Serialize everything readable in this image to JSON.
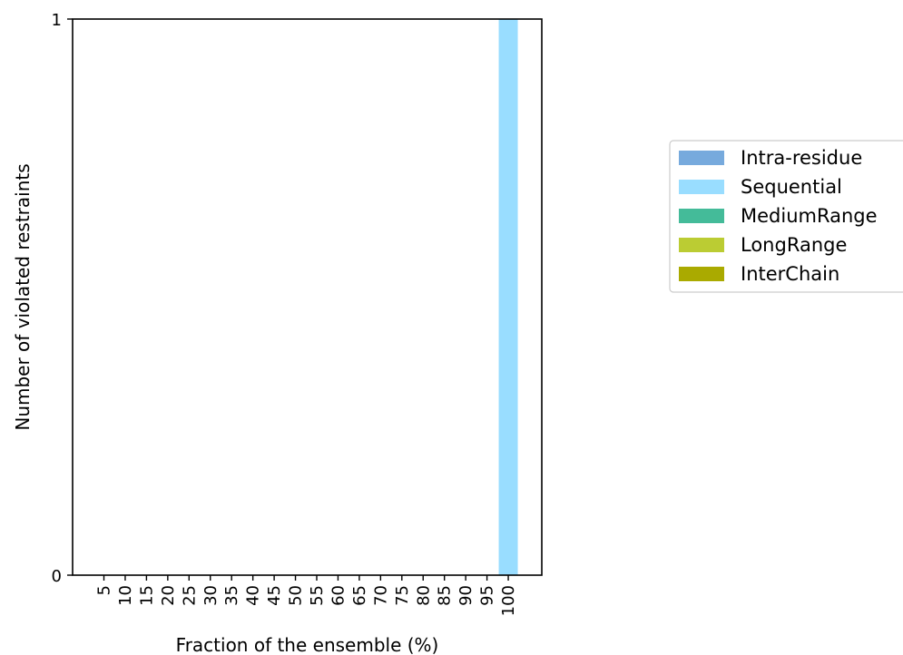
{
  "chart_data": {
    "type": "bar",
    "stacked": true,
    "categories": [
      "5",
      "10",
      "15",
      "20",
      "25",
      "30",
      "35",
      "40",
      "45",
      "50",
      "55",
      "60",
      "65",
      "70",
      "75",
      "80",
      "85",
      "90",
      "95",
      "100"
    ],
    "series": [
      {
        "name": "Intra-residue",
        "color": "#77aadd",
        "values": [
          0,
          0,
          0,
          0,
          0,
          0,
          0,
          0,
          0,
          0,
          0,
          0,
          0,
          0,
          0,
          0,
          0,
          0,
          0,
          0
        ]
      },
      {
        "name": "Sequential",
        "color": "#99ddff",
        "values": [
          0,
          0,
          0,
          0,
          0,
          0,
          0,
          0,
          0,
          0,
          0,
          0,
          0,
          0,
          0,
          0,
          0,
          0,
          0,
          1
        ]
      },
      {
        "name": "MediumRange",
        "color": "#44bb99",
        "values": [
          0,
          0,
          0,
          0,
          0,
          0,
          0,
          0,
          0,
          0,
          0,
          0,
          0,
          0,
          0,
          0,
          0,
          0,
          0,
          0
        ]
      },
      {
        "name": "LongRange",
        "color": "#bbcc33",
        "values": [
          0,
          0,
          0,
          0,
          0,
          0,
          0,
          0,
          0,
          0,
          0,
          0,
          0,
          0,
          0,
          0,
          0,
          0,
          0,
          0
        ]
      },
      {
        "name": "InterChain",
        "color": "#aaaa00",
        "values": [
          0,
          0,
          0,
          0,
          0,
          0,
          0,
          0,
          0,
          0,
          0,
          0,
          0,
          0,
          0,
          0,
          0,
          0,
          0,
          0
        ]
      }
    ],
    "xlabel": "Fraction of the ensemble (%)",
    "ylabel": "Number of violated restraints",
    "ylim": [
      0,
      1
    ],
    "yticks": [
      "0",
      "1"
    ],
    "grid": false,
    "legend_position": "right"
  }
}
